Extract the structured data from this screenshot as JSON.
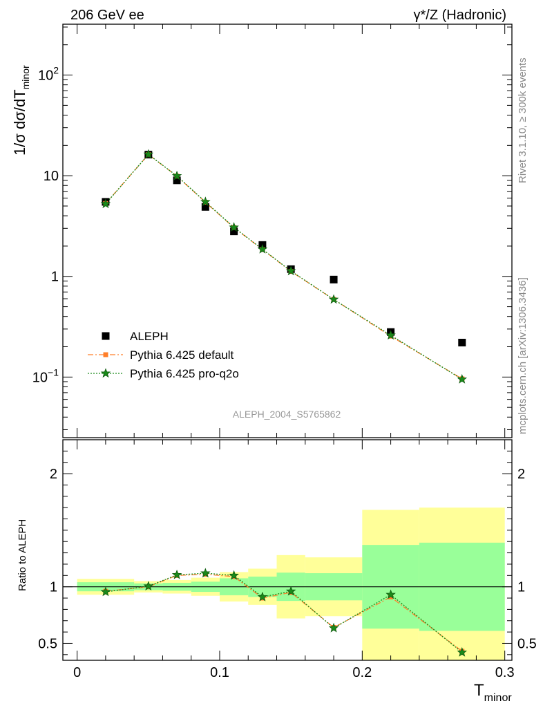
{
  "header": {
    "left": "206 GeV ee",
    "right_main": "γ*/Z",
    "right_sub": "(Hadronic)"
  },
  "side_labels": {
    "rivet": "Rivet 3.1.10, ≥ 300k events",
    "mcplots": "mcplots.cern.ch [arXiv:1306.3436]"
  },
  "analysis_id": "ALEPH_2004_S5765862",
  "chart_data": [
    {
      "panel": "main",
      "type": "scatter",
      "y_scale": "log",
      "xlim": [
        -0.01,
        0.305
      ],
      "ylim": [
        0.025,
        320
      ],
      "ylabel": "1/σ  dσ/dT",
      "ylabel_sub": "minor",
      "y_ticks": [
        {
          "value": 0.1,
          "base": "10",
          "exp": "−1"
        },
        {
          "value": 1,
          "base": "1",
          "exp": ""
        },
        {
          "value": 10,
          "base": "10",
          "exp": ""
        },
        {
          "value": 100,
          "base": "10",
          "exp": "2"
        }
      ],
      "legend_position": "lower-left",
      "series": [
        {
          "name": "ALEPH",
          "color": "#000000",
          "marker": "square",
          "x": [
            0.02,
            0.05,
            0.07,
            0.09,
            0.11,
            0.13,
            0.15,
            0.18,
            0.22,
            0.27
          ],
          "y": [
            5.5,
            16.2,
            9.0,
            4.9,
            2.8,
            2.05,
            1.18,
            0.93,
            0.28,
            0.22
          ]
        },
        {
          "name": "Pythia 6.425 default",
          "color": "#ff7f2a",
          "marker": "square",
          "x": [
            0.02,
            0.05,
            0.07,
            0.09,
            0.11,
            0.13,
            0.15,
            0.18,
            0.22,
            0.27
          ],
          "y": [
            5.3,
            16.2,
            9.9,
            5.45,
            3.05,
            1.85,
            1.12,
            0.59,
            0.255,
            0.096
          ]
        },
        {
          "name": "Pythia 6.425 pro-q2o",
          "color": "#1a8a1a",
          "marker": "star",
          "x": [
            0.02,
            0.05,
            0.07,
            0.09,
            0.11,
            0.13,
            0.15,
            0.18,
            0.22,
            0.27
          ],
          "y": [
            5.25,
            16.3,
            9.95,
            5.5,
            3.07,
            1.86,
            1.13,
            0.59,
            0.26,
            0.095
          ]
        }
      ]
    },
    {
      "panel": "ratio",
      "type": "line",
      "xlim": [
        -0.01,
        0.305
      ],
      "ylim": [
        0.35,
        2.3
      ],
      "xlabel": "T",
      "xlabel_sub": "minor",
      "ylabel": "Ratio to ALEPH",
      "x_ticks": [
        "0",
        "0.1",
        "0.2",
        "0.3"
      ],
      "y_ticks": [
        "0.5",
        "1",
        "2"
      ],
      "bands": {
        "bins": [
          [
            0.0,
            0.04
          ],
          [
            0.04,
            0.06
          ],
          [
            0.06,
            0.08
          ],
          [
            0.08,
            0.1
          ],
          [
            0.1,
            0.12
          ],
          [
            0.12,
            0.14
          ],
          [
            0.14,
            0.16
          ],
          [
            0.16,
            0.2
          ],
          [
            0.2,
            0.24
          ],
          [
            0.24,
            0.3
          ]
        ],
        "outer_lo": [
          0.93,
          0.95,
          0.94,
          0.92,
          0.87,
          0.84,
          0.72,
          0.74,
          0.32,
          0.3
        ],
        "outer_hi": [
          1.07,
          1.05,
          1.06,
          1.08,
          1.13,
          1.16,
          1.28,
          1.26,
          1.68,
          1.7
        ],
        "inner_lo": [
          0.96,
          0.97,
          0.965,
          0.955,
          0.925,
          0.91,
          0.875,
          0.88,
          0.63,
          0.61
        ],
        "inner_hi": [
          1.04,
          1.03,
          1.035,
          1.045,
          1.075,
          1.09,
          1.125,
          1.12,
          1.37,
          1.39
        ],
        "outer_color": "#ffff99",
        "inner_color": "#99ff99"
      },
      "series": [
        {
          "name": "Pythia 6.425 default",
          "color": "#ff7f2a",
          "marker": "square",
          "x": [
            0.02,
            0.05,
            0.07,
            0.09,
            0.11,
            0.13,
            0.15,
            0.18,
            0.22,
            0.27
          ],
          "y": [
            0.96,
            1.0,
            1.1,
            1.11,
            1.09,
            0.9,
            0.95,
            0.64,
            0.91,
            0.43
          ]
        },
        {
          "name": "Pythia 6.425 pro-q2o",
          "color": "#1a8a1a",
          "marker": "star",
          "x": [
            0.02,
            0.05,
            0.07,
            0.09,
            0.11,
            0.13,
            0.15,
            0.18,
            0.22,
            0.27
          ],
          "y": [
            0.955,
            1.005,
            1.105,
            1.12,
            1.1,
            0.91,
            0.96,
            0.635,
            0.93,
            0.42
          ]
        }
      ]
    }
  ]
}
